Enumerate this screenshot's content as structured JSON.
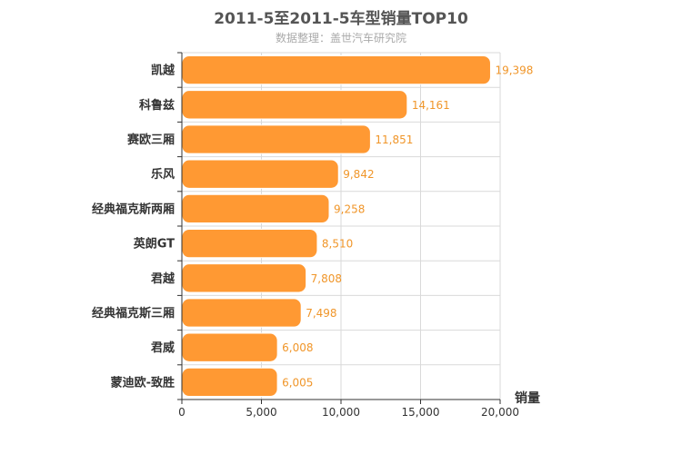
{
  "chart_data": {
    "type": "bar",
    "orientation": "horizontal",
    "title": "2011-5至2011-5车型销量TOP10",
    "subtitle": "数据整理：盖世汽车研究院",
    "categories": [
      "凯越",
      "科鲁兹",
      "赛欧三厢",
      "乐风",
      "经典福克斯两厢",
      "英朗GT",
      "君越",
      "经典福克斯三厢",
      "君威",
      "蒙迪欧-致胜"
    ],
    "values": [
      19398,
      14161,
      11851,
      9842,
      9258,
      8510,
      7808,
      7498,
      6008,
      6005
    ],
    "value_labels": [
      "19,398",
      "14,161",
      "11,851",
      "9,842",
      "9,258",
      "8,510",
      "7,808",
      "7,498",
      "6,008",
      "6,005"
    ],
    "xlabel": "销量",
    "xlim": [
      0,
      20000
    ],
    "xticks": [
      0,
      5000,
      10000,
      15000,
      20000
    ],
    "xtick_labels": [
      "0",
      "5,000",
      "10,000",
      "15,000",
      "20,000"
    ],
    "grid": true,
    "colors": {
      "bar": "#ff9933",
      "bar_stroke": "#ffffff",
      "data_label": "#f0962a",
      "grid": "#d9d9d9"
    }
  }
}
